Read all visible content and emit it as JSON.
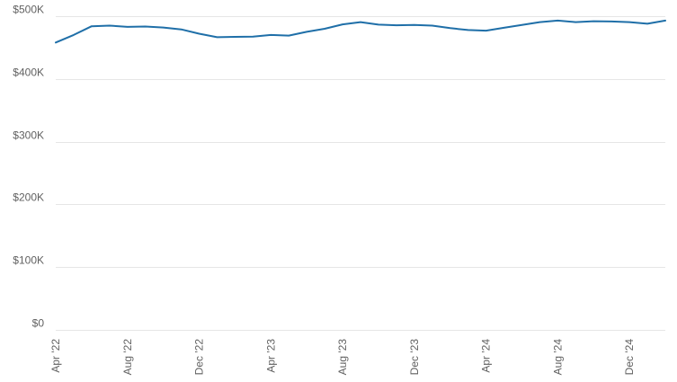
{
  "chart_data": {
    "type": "line",
    "title": "",
    "xlabel": "",
    "ylabel": "",
    "ylim": [
      0,
      500000
    ],
    "y_ticks": [
      0,
      100000,
      200000,
      300000,
      400000,
      500000
    ],
    "y_tick_labels": [
      "$0",
      "$100K",
      "$200K",
      "$300K",
      "$400K",
      "$500K"
    ],
    "x_tick_labels": [
      "Apr '22",
      "Aug '22",
      "Dec '22",
      "Apr '23",
      "Aug '23",
      "Dec '23",
      "Apr '24",
      "Aug '24",
      "Dec '24"
    ],
    "x_tick_indices": [
      0,
      4,
      8,
      12,
      16,
      20,
      24,
      28,
      32
    ],
    "x": [
      "2022-04",
      "2022-05",
      "2022-06",
      "2022-07",
      "2022-08",
      "2022-09",
      "2022-10",
      "2022-11",
      "2022-12",
      "2023-01",
      "2023-02",
      "2023-03",
      "2023-04",
      "2023-05",
      "2023-06",
      "2023-07",
      "2023-08",
      "2023-09",
      "2023-10",
      "2023-11",
      "2023-12",
      "2024-01",
      "2024-02",
      "2024-03",
      "2024-04",
      "2024-05",
      "2024-06",
      "2024-07",
      "2024-08",
      "2024-09",
      "2024-10",
      "2024-11",
      "2024-12",
      "2025-01",
      "2025-02"
    ],
    "series": [
      {
        "color": "#1f6fa8",
        "values": [
          458000,
          470000,
          484000,
          485000,
          483000,
          483500,
          482000,
          479000,
          472000,
          466500,
          467000,
          467500,
          470000,
          469000,
          475000,
          480000,
          487000,
          490500,
          486500,
          485500,
          486000,
          485000,
          481000,
          478000,
          477000,
          481500,
          486000,
          490500,
          493000,
          490500,
          492000,
          491500,
          490500,
          488000,
          493000
        ]
      }
    ],
    "grid": true,
    "legend": "none"
  }
}
